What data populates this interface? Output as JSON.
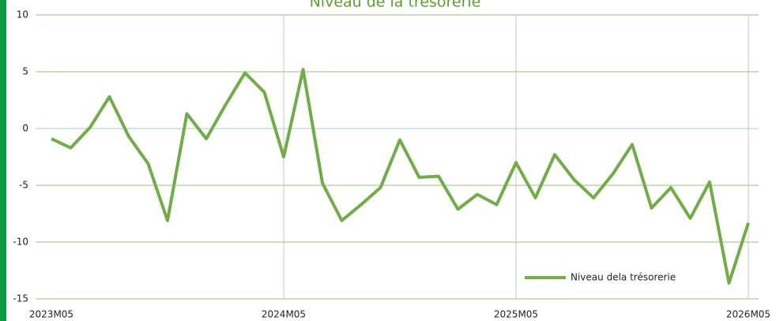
{
  "chart_data": {
    "type": "line",
    "title": "Niveau de la trésorerie",
    "categories": [
      "2023M05",
      null,
      null,
      null,
      null,
      null,
      null,
      null,
      null,
      null,
      null,
      null,
      "2024M05",
      null,
      null,
      null,
      null,
      null,
      null,
      null,
      null,
      null,
      null,
      null,
      "2025M05",
      null,
      null,
      null,
      null,
      null,
      null,
      null,
      null,
      null,
      null,
      null,
      "2026M05"
    ],
    "series": [
      {
        "name": "Niveau dela trésorerie",
        "color": "#70ad47",
        "values": [
          -0.9,
          -1.7,
          0.1,
          2.8,
          -0.7,
          -3.1,
          -8.1,
          1.3,
          -0.9,
          2.1,
          4.9,
          3.2,
          -2.5,
          5.2,
          -4.8,
          -8.1,
          -6.7,
          -5.2,
          -1.0,
          -4.3,
          -4.2,
          -7.1,
          -5.8,
          -6.7,
          -3.0,
          -6.1,
          -2.3,
          -4.5,
          -6.1,
          -4.0,
          -1.4,
          -7.0,
          -5.2,
          -7.9,
          -4.7,
          -13.6,
          -8.3
        ]
      }
    ],
    "ylim": [
      -15,
      10
    ],
    "yticks": [
      -15,
      -10,
      -5,
      0,
      5,
      10
    ],
    "grid": true,
    "legend": "lower right"
  }
}
